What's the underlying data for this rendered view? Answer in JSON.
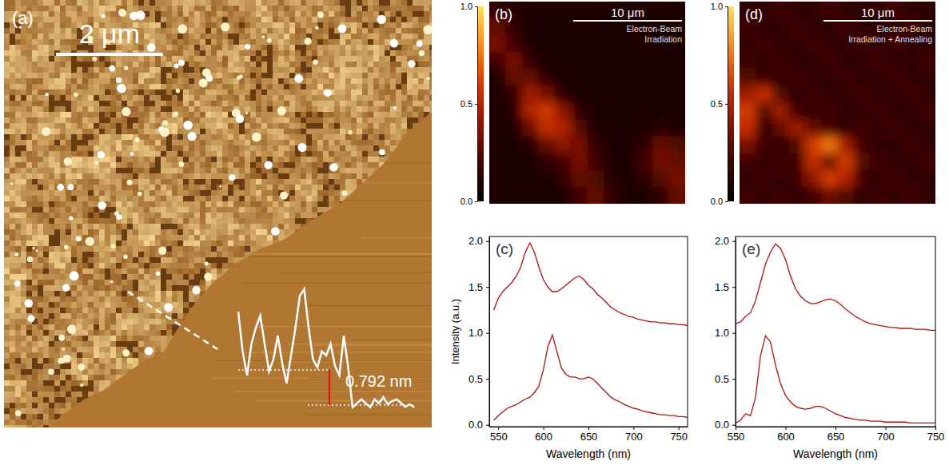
{
  "chart_data": [
    {
      "type": "image",
      "label": "(a)",
      "extent": 8,
      "scale_bar": {
        "length": 2,
        "label": "2 μm"
      },
      "profile": {
        "values": [
          2.1,
          1.21,
          0.67,
          1.38,
          1.74,
          2.01,
          1.38,
          0.76,
          1.03,
          1.56,
          0.94,
          0.49,
          1.12,
          1.74,
          2.46,
          2.61,
          1.74,
          1.03,
          0.85,
          1.21,
          1.12,
          1.38,
          0.88,
          0.67,
          1.56,
          0.85,
          -0.05,
          0.04,
          0.13,
          0.04,
          -0.05,
          0.13,
          0.04,
          0.18,
          0.02,
          0.09,
          0.13,
          0.05,
          -0.04,
          0.02,
          -0.05
        ],
        "step": {
          "lower": 0,
          "upper": 0.792,
          "label": "0.792 nm"
        }
      }
    },
    {
      "type": "heatmap",
      "label": "(b)",
      "caption": [
        "Electron-Beam",
        "Irradiation"
      ],
      "extent": 18,
      "scale_bar": {
        "length": 10,
        "label": "10 μm"
      },
      "colorbar": {
        "range": [
          0,
          1
        ],
        "ticks": [
          {
            "value": 0,
            "label": "0.0"
          },
          {
            "value": 0.5,
            "label": "0.5"
          },
          {
            "value": 1,
            "label": "1.0"
          }
        ]
      },
      "cells": [
        [
          0.15,
          0.12,
          0.1,
          0.1,
          0.1,
          0.1,
          0.1,
          0.1,
          0.1,
          0.1,
          0.1,
          0.1
        ],
        [
          0.3,
          0.15,
          0.1,
          0.1,
          0.1,
          0.1,
          0.1,
          0.1,
          0.1,
          0.1,
          0.1,
          0.1
        ],
        [
          0.35,
          0.2,
          0.1,
          0.1,
          0.1,
          0.1,
          0.1,
          0.1,
          0.1,
          0.1,
          0.1,
          0.1
        ],
        [
          0.2,
          0.35,
          0.15,
          0.1,
          0.1,
          0.1,
          0.1,
          0.1,
          0.1,
          0.1,
          0.1,
          0.1
        ],
        [
          0.1,
          0.3,
          0.3,
          0.12,
          0.1,
          0.1,
          0.1,
          0.1,
          0.1,
          0.1,
          0.1,
          0.1
        ],
        [
          0.1,
          0.15,
          0.45,
          0.35,
          0.12,
          0.1,
          0.1,
          0.1,
          0.1,
          0.1,
          0.1,
          0.1
        ],
        [
          0.1,
          0.12,
          0.5,
          0.6,
          0.4,
          0.15,
          0.1,
          0.1,
          0.1,
          0.1,
          0.1,
          0.1
        ],
        [
          0.1,
          0.1,
          0.3,
          0.55,
          0.5,
          0.25,
          0.1,
          0.1,
          0.1,
          0.1,
          0.12,
          0.1
        ],
        [
          0.1,
          0.1,
          0.12,
          0.3,
          0.4,
          0.35,
          0.15,
          0.1,
          0.1,
          0.15,
          0.3,
          0.25
        ],
        [
          0.1,
          0.1,
          0.1,
          0.15,
          0.2,
          0.35,
          0.2,
          0.1,
          0.1,
          0.2,
          0.35,
          0.3
        ],
        [
          0.1,
          0.1,
          0.1,
          0.1,
          0.15,
          0.3,
          0.25,
          0.12,
          0.1,
          0.15,
          0.25,
          0.35
        ],
        [
          0.1,
          0.1,
          0.1,
          0.1,
          0.1,
          0.2,
          0.3,
          0.15,
          0.1,
          0.1,
          0.15,
          0.3
        ]
      ]
    },
    {
      "type": "line",
      "label": "(c)",
      "xlabel": "Wavelength (nm)",
      "ylabel": "Intensity (a.u.)",
      "xlim": [
        540,
        760
      ],
      "ylim": [
        -0.02,
        2.05
      ],
      "xticks": [
        550,
        600,
        650,
        700,
        750
      ],
      "yticks": [
        {
          "value": 0,
          "label": "0.0"
        },
        {
          "value": 0.5,
          "label": "0.5"
        },
        {
          "value": 1,
          "label": "1.0"
        },
        {
          "value": 1.5,
          "label": "1.5"
        },
        {
          "value": 2,
          "label": "2.0"
        }
      ],
      "x": [
        545,
        550,
        555,
        560,
        565,
        570,
        575,
        580,
        585,
        590,
        595,
        600,
        605,
        610,
        615,
        620,
        625,
        630,
        635,
        640,
        645,
        650,
        655,
        660,
        665,
        670,
        675,
        680,
        685,
        690,
        695,
        700,
        705,
        710,
        715,
        720,
        725,
        730,
        735,
        740,
        745,
        750,
        755,
        760
      ],
      "series": [
        {
          "color": "#b01010",
          "values": [
            1.25,
            1.38,
            1.45,
            1.5,
            1.55,
            1.62,
            1.72,
            1.88,
            1.98,
            1.88,
            1.72,
            1.58,
            1.5,
            1.45,
            1.45,
            1.48,
            1.52,
            1.56,
            1.6,
            1.62,
            1.58,
            1.52,
            1.48,
            1.42,
            1.38,
            1.33,
            1.28,
            1.25,
            1.22,
            1.2,
            1.18,
            1.17,
            1.15,
            1.14,
            1.13,
            1.12,
            1.12,
            1.11,
            1.11,
            1.1,
            1.1,
            1.09,
            1.09,
            1.08
          ]
        },
        {
          "color": "#b01010",
          "values": [
            0.05,
            0.1,
            0.14,
            0.18,
            0.2,
            0.22,
            0.25,
            0.28,
            0.3,
            0.35,
            0.42,
            0.6,
            0.85,
            0.98,
            0.8,
            0.62,
            0.55,
            0.52,
            0.52,
            0.5,
            0.5,
            0.52,
            0.5,
            0.45,
            0.4,
            0.35,
            0.3,
            0.27,
            0.25,
            0.22,
            0.2,
            0.18,
            0.17,
            0.15,
            0.14,
            0.13,
            0.12,
            0.11,
            0.11,
            0.1,
            0.1,
            0.09,
            0.09,
            0.08
          ]
        }
      ]
    },
    {
      "type": "heatmap",
      "label": "(d)",
      "caption": [
        "Electron-Beam",
        "Irradiation + Annealing"
      ],
      "extent": 18,
      "scale_bar": {
        "length": 10,
        "label": "10 μm"
      },
      "colorbar": {
        "range": [
          0,
          1
        ],
        "ticks": [
          {
            "value": 0,
            "label": "0.0"
          },
          {
            "value": 0.5,
            "label": "0.5"
          },
          {
            "value": 1,
            "label": "1.0"
          }
        ]
      },
      "cells": [
        [
          0.15,
          0.15,
          0.2,
          0.15,
          0.15,
          0.2,
          0.15,
          0.15,
          0.15,
          0.2,
          0.15,
          0.15
        ],
        [
          0.2,
          0.15,
          0.15,
          0.2,
          0.15,
          0.15,
          0.2,
          0.15,
          0.15,
          0.15,
          0.2,
          0.15
        ],
        [
          0.15,
          0.2,
          0.15,
          0.15,
          0.2,
          0.15,
          0.15,
          0.2,
          0.15,
          0.2,
          0.15,
          0.15
        ],
        [
          0.2,
          0.15,
          0.2,
          0.15,
          0.15,
          0.2,
          0.15,
          0.15,
          0.2,
          0.15,
          0.15,
          0.2
        ],
        [
          0.25,
          0.2,
          0.15,
          0.2,
          0.15,
          0.15,
          0.2,
          0.15,
          0.15,
          0.2,
          0.15,
          0.15
        ],
        [
          0.45,
          0.55,
          0.25,
          0.15,
          0.2,
          0.15,
          0.15,
          0.2,
          0.15,
          0.15,
          0.2,
          0.15
        ],
        [
          0.6,
          0.25,
          0.45,
          0.2,
          0.15,
          0.2,
          0.15,
          0.15,
          0.2,
          0.15,
          0.15,
          0.2
        ],
        [
          0.55,
          0.15,
          0.3,
          0.45,
          0.3,
          0.2,
          0.15,
          0.2,
          0.15,
          0.2,
          0.15,
          0.15
        ],
        [
          0.35,
          0.2,
          0.15,
          0.25,
          0.6,
          0.75,
          0.45,
          0.2,
          0.15,
          0.15,
          0.2,
          0.15
        ],
        [
          0.2,
          0.15,
          0.2,
          0.2,
          0.55,
          0.3,
          0.6,
          0.25,
          0.2,
          0.15,
          0.15,
          0.2
        ],
        [
          0.15,
          0.2,
          0.15,
          0.2,
          0.4,
          0.6,
          0.5,
          0.2,
          0.15,
          0.2,
          0.15,
          0.15
        ],
        [
          0.2,
          0.15,
          0.2,
          0.15,
          0.2,
          0.3,
          0.25,
          0.15,
          0.2,
          0.15,
          0.2,
          0.15
        ]
      ]
    },
    {
      "type": "line",
      "label": "(e)",
      "xlabel": "Wavelength (nm)",
      "xlim": [
        550,
        750
      ],
      "ylim": [
        -0.02,
        2.05
      ],
      "xticks": [
        550,
        600,
        650,
        700,
        750
      ],
      "yticks": [
        {
          "value": 0,
          "label": "0.0"
        },
        {
          "value": 0.5,
          "label": "0.5"
        },
        {
          "value": 1,
          "label": "1.0"
        },
        {
          "value": 1.5,
          "label": "1.5"
        },
        {
          "value": 2,
          "label": "2.0"
        }
      ],
      "x": [
        550,
        555,
        560,
        565,
        570,
        575,
        580,
        585,
        590,
        595,
        600,
        605,
        610,
        615,
        620,
        625,
        630,
        635,
        640,
        645,
        650,
        655,
        660,
        665,
        670,
        675,
        680,
        685,
        690,
        695,
        700,
        705,
        710,
        715,
        720,
        725,
        730,
        735,
        740,
        745,
        750
      ],
      "series": [
        {
          "color": "#b01010",
          "values": [
            1.1,
            1.12,
            1.18,
            1.22,
            1.35,
            1.55,
            1.75,
            1.88,
            1.97,
            1.92,
            1.8,
            1.62,
            1.48,
            1.4,
            1.35,
            1.32,
            1.32,
            1.34,
            1.36,
            1.37,
            1.35,
            1.31,
            1.26,
            1.22,
            1.18,
            1.15,
            1.12,
            1.1,
            1.09,
            1.08,
            1.07,
            1.06,
            1.06,
            1.05,
            1.05,
            1.05,
            1.04,
            1.04,
            1.04,
            1.03,
            1.03
          ]
        },
        {
          "color": "#b01010",
          "values": [
            0.02,
            0.05,
            0.12,
            0.1,
            0.3,
            0.75,
            0.97,
            0.9,
            0.65,
            0.45,
            0.32,
            0.25,
            0.2,
            0.18,
            0.17,
            0.18,
            0.2,
            0.2,
            0.18,
            0.15,
            0.12,
            0.1,
            0.08,
            0.07,
            0.06,
            0.05,
            0.05,
            0.04,
            0.04,
            0.04,
            0.03,
            0.03,
            0.03,
            0.03,
            0.03,
            0.02,
            0.02,
            0.02,
            0.02,
            0.02,
            0.02
          ]
        }
      ]
    }
  ]
}
